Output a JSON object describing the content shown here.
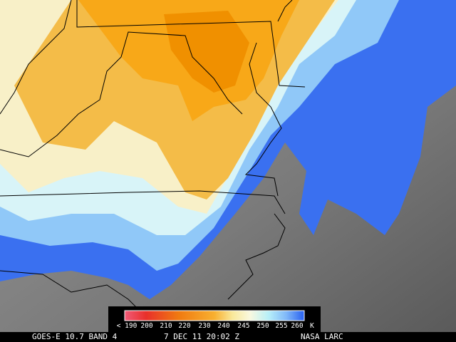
{
  "legend": {
    "labels": [
      "< 190",
      "200",
      "210",
      "220",
      "230",
      "240",
      "245",
      "250",
      "255",
      "260"
    ],
    "unit": "K"
  },
  "caption": {
    "product": "GOES-E 10.7 BAND 4",
    "time": "7 DEC 11 20:02 Z",
    "source": "NASA LARC"
  }
}
